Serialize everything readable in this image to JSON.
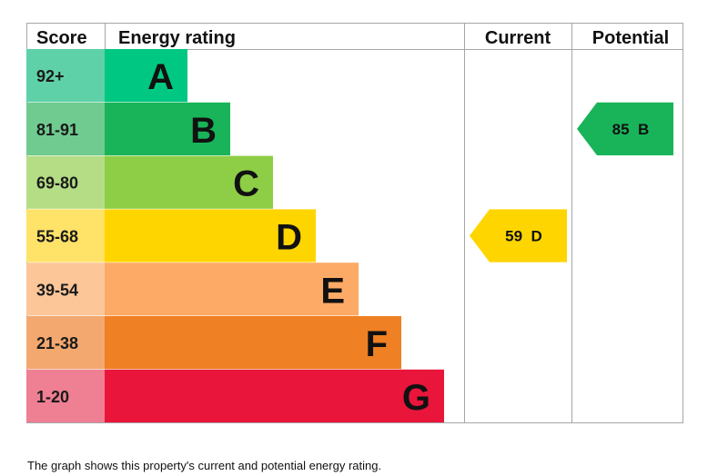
{
  "headers": {
    "score": "Score",
    "energy_rating": "Energy rating",
    "current": "Current",
    "potential": "Potential"
  },
  "chart_data": {
    "type": "table",
    "bands": [
      {
        "score": "92+",
        "letter": "A",
        "color": "#00c781",
        "score_color": "#5fd1a8"
      },
      {
        "score": "81-91",
        "letter": "B",
        "color": "#19b459",
        "score_color": "#6fcb90"
      },
      {
        "score": "69-80",
        "letter": "C",
        "color": "#8dce46",
        "score_color": "#b5dd85"
      },
      {
        "score": "55-68",
        "letter": "D",
        "color": "#ffd500",
        "score_color": "#ffe268"
      },
      {
        "score": "39-54",
        "letter": "E",
        "color": "#fcaa65",
        "score_color": "#fcc698"
      },
      {
        "score": "21-38",
        "letter": "F",
        "color": "#ef8023",
        "score_color": "#f3a870"
      },
      {
        "score": "1-20",
        "letter": "G",
        "color": "#e9153b",
        "score_color": "#ef7f93"
      }
    ],
    "current": {
      "value": 59,
      "letter": "D",
      "label": "59  D",
      "color": "#ffd500"
    },
    "potential": {
      "value": 85,
      "letter": "B",
      "label": "85  B",
      "color": "#19b459"
    }
  },
  "caption": "The graph shows this property's current and potential energy rating."
}
